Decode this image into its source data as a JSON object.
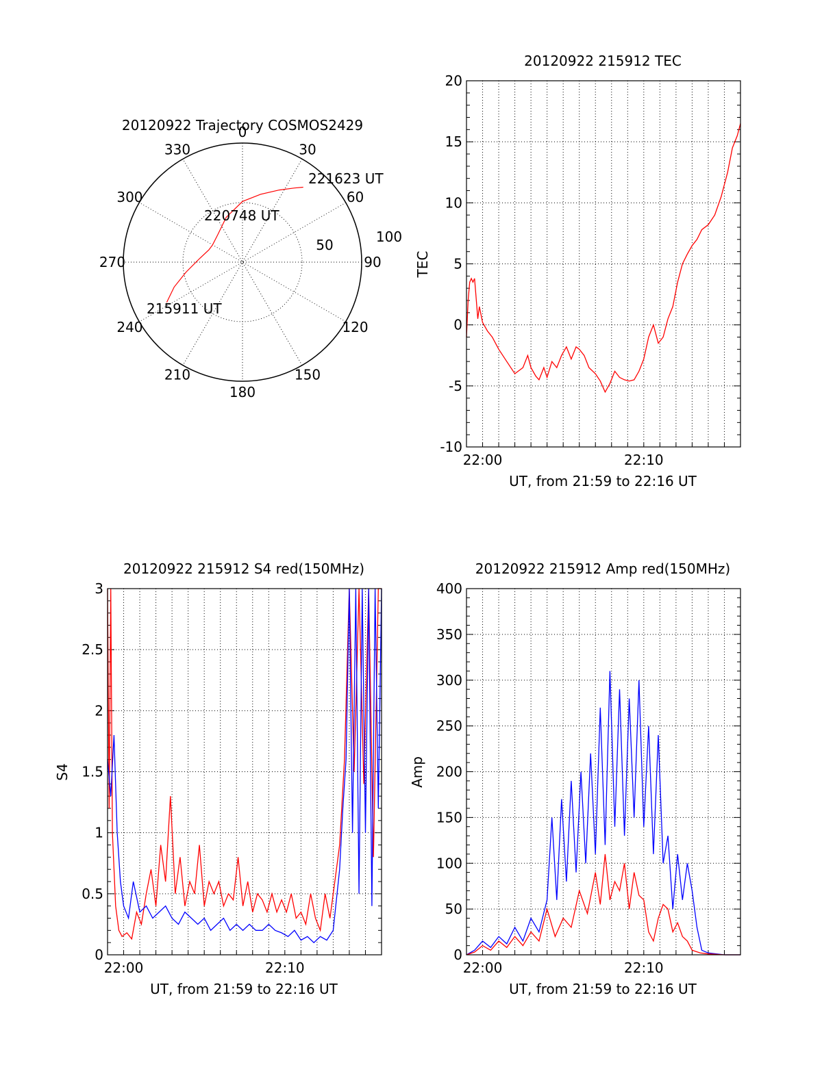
{
  "colors": {
    "red": "#ff0000",
    "blue": "#0000ff",
    "axis": "#000000"
  },
  "chart_data": [
    {
      "type": "polar",
      "title": "20120922 Trajectory COSMOS2429",
      "azimuth_labels": [
        "0",
        "30",
        "60",
        "90",
        "120",
        "150",
        "180",
        "210",
        "240",
        "270",
        "300",
        "330"
      ],
      "radial_labels": [
        "50",
        "100"
      ],
      "series": [
        {
          "color": "red",
          "points": [
            {
              "az": 242,
              "r": 72
            },
            {
              "az": 250,
              "r": 61
            },
            {
              "az": 260,
              "r": 48
            },
            {
              "az": 275,
              "r": 36
            },
            {
              "az": 290,
              "r": 30
            },
            {
              "az": 300,
              "r": 29
            },
            {
              "az": 318,
              "r": 31
            },
            {
              "az": 340,
              "r": 40
            },
            {
              "az": 0,
              "r": 51
            },
            {
              "az": 15,
              "r": 59
            },
            {
              "az": 27,
              "r": 68
            },
            {
              "az": 35,
              "r": 76
            },
            {
              "az": 39,
              "r": 81
            }
          ]
        }
      ],
      "annotations": [
        "221623 UT",
        "220748 UT",
        "215911 UT"
      ]
    },
    {
      "type": "line",
      "title": "20120922 215912 TEC",
      "xlabel": "UT, from 21:59 to 22:16 UT",
      "ylabel": "TEC",
      "x_unit": "minutes after 21:59",
      "xlim": [
        0,
        17
      ],
      "ylim": [
        -10,
        20
      ],
      "yticks": [
        "-10",
        "-5",
        "0",
        "5",
        "10",
        "15",
        "20"
      ],
      "xticks": [
        {
          "x": 1,
          "label": "22:00"
        },
        {
          "x": 11,
          "label": "22:10"
        }
      ],
      "grid": true,
      "series": [
        {
          "color": "red",
          "x": [
            0.0,
            0.1,
            0.2,
            0.3,
            0.4,
            0.5,
            0.6,
            0.7,
            0.8,
            1.0,
            1.3,
            1.6,
            2.0,
            2.5,
            3.0,
            3.5,
            3.8,
            4.0,
            4.3,
            4.5,
            4.8,
            5.0,
            5.3,
            5.6,
            5.9,
            6.2,
            6.5,
            6.8,
            7.0,
            7.3,
            7.6,
            8.0,
            8.3,
            8.6,
            8.9,
            9.2,
            9.5,
            9.8,
            10.1,
            10.4,
            10.7,
            11.0,
            11.3,
            11.6,
            11.9,
            12.2,
            12.5,
            12.8,
            13.1,
            13.4,
            13.7,
            14.0,
            14.3,
            14.6,
            15.0,
            15.4,
            15.8,
            16.2,
            16.5,
            16.8,
            17.0
          ],
          "y": [
            -1.0,
            2.0,
            3.5,
            3.8,
            3.5,
            3.8,
            2.2,
            0.5,
            1.5,
            0.2,
            -0.5,
            -1.0,
            -2.0,
            -3.0,
            -4.0,
            -3.5,
            -2.5,
            -3.5,
            -4.2,
            -4.5,
            -3.5,
            -4.3,
            -3.0,
            -3.5,
            -2.5,
            -1.8,
            -2.8,
            -1.8,
            -2.0,
            -2.5,
            -3.5,
            -4.0,
            -4.6,
            -5.5,
            -4.8,
            -3.8,
            -4.3,
            -4.5,
            -4.6,
            -4.5,
            -3.8,
            -2.8,
            -1.0,
            0.0,
            -1.5,
            -1.0,
            0.5,
            1.5,
            3.5,
            5.0,
            5.8,
            6.5,
            7.0,
            7.8,
            8.2,
            9.0,
            10.5,
            12.5,
            14.5,
            15.5,
            16.5
          ]
        }
      ]
    },
    {
      "type": "line",
      "title": "20120922 215912 S4 red(150MHz)",
      "xlabel": "UT, from 21:59 to 22:16 UT",
      "ylabel": "S4",
      "x_unit": "minutes after 21:59",
      "xlim": [
        0,
        17
      ],
      "ylim": [
        0,
        3
      ],
      "yticks": [
        "0",
        "0.5",
        "1",
        "1.5",
        "2",
        "2.5",
        "3"
      ],
      "xticks": [
        {
          "x": 1,
          "label": "22:00"
        },
        {
          "x": 11,
          "label": "22:10"
        }
      ],
      "grid": true,
      "series": [
        {
          "color": "red",
          "x": [
            0.0,
            0.1,
            0.2,
            0.3,
            0.5,
            0.7,
            0.9,
            1.2,
            1.5,
            1.8,
            2.1,
            2.4,
            2.7,
            3.0,
            3.3,
            3.6,
            3.9,
            4.2,
            4.5,
            4.8,
            5.1,
            5.4,
            5.7,
            6.0,
            6.3,
            6.6,
            6.9,
            7.2,
            7.5,
            7.8,
            8.1,
            8.4,
            8.7,
            9.0,
            9.3,
            9.6,
            9.9,
            10.2,
            10.5,
            10.8,
            11.1,
            11.4,
            11.7,
            12.0,
            12.3,
            12.6,
            12.9,
            13.2,
            13.5,
            13.8,
            14.1,
            14.4,
            14.7,
            15.0,
            15.3,
            15.6,
            15.9,
            16.2,
            16.5,
            16.8,
            17.0
          ],
          "y": [
            3.0,
            1.2,
            3.0,
            1.0,
            0.4,
            0.2,
            0.15,
            0.18,
            0.13,
            0.35,
            0.25,
            0.5,
            0.7,
            0.4,
            0.9,
            0.6,
            1.3,
            0.5,
            0.8,
            0.4,
            0.6,
            0.5,
            0.9,
            0.4,
            0.6,
            0.5,
            0.6,
            0.4,
            0.5,
            0.45,
            0.8,
            0.4,
            0.6,
            0.35,
            0.5,
            0.45,
            0.35,
            0.5,
            0.35,
            0.45,
            0.35,
            0.5,
            0.3,
            0.35,
            0.25,
            0.5,
            0.3,
            0.2,
            0.5,
            0.3,
            0.6,
            0.9,
            1.6,
            3.0,
            1.5,
            3.0,
            1.4,
            3.0,
            0.8,
            3.0,
            3.0
          ]
        },
        {
          "color": "blue",
          "x": [
            0.0,
            0.2,
            0.4,
            0.6,
            0.8,
            1.0,
            1.3,
            1.6,
            2.0,
            2.4,
            2.8,
            3.2,
            3.6,
            4.0,
            4.4,
            4.8,
            5.2,
            5.6,
            6.0,
            6.4,
            6.8,
            7.2,
            7.6,
            8.0,
            8.4,
            8.8,
            9.2,
            9.6,
            10.0,
            10.4,
            10.8,
            11.2,
            11.6,
            12.0,
            12.4,
            12.8,
            13.2,
            13.6,
            14.0,
            14.4,
            14.6,
            14.8,
            15.0,
            15.2,
            15.4,
            15.6,
            15.8,
            16.0,
            16.2,
            16.4,
            16.6,
            16.8,
            17.0
          ],
          "y": [
            1.6,
            1.3,
            1.8,
            1.0,
            0.6,
            0.4,
            0.3,
            0.6,
            0.35,
            0.4,
            0.3,
            0.35,
            0.4,
            0.3,
            0.25,
            0.35,
            0.3,
            0.25,
            0.3,
            0.2,
            0.25,
            0.3,
            0.2,
            0.25,
            0.2,
            0.25,
            0.2,
            0.2,
            0.25,
            0.2,
            0.18,
            0.15,
            0.2,
            0.12,
            0.15,
            0.1,
            0.15,
            0.12,
            0.2,
            0.7,
            1.2,
            1.6,
            3.0,
            1.0,
            3.0,
            0.5,
            3.0,
            1.0,
            3.0,
            0.4,
            3.0,
            1.2,
            3.0
          ]
        }
      ]
    },
    {
      "type": "line",
      "title": "20120922 215912 Amp red(150MHz)",
      "xlabel": "UT, from 21:59 to 22:16 UT",
      "ylabel": "Amp",
      "x_unit": "minutes after 21:59",
      "xlim": [
        0,
        17
      ],
      "ylim": [
        0,
        400
      ],
      "yticks": [
        "0",
        "50",
        "100",
        "150",
        "200",
        "250",
        "300",
        "350",
        "400"
      ],
      "xticks": [
        {
          "x": 1,
          "label": "22:00"
        },
        {
          "x": 11,
          "label": "22:10"
        }
      ],
      "grid": true,
      "series": [
        {
          "color": "blue",
          "x": [
            0.0,
            0.5,
            1.0,
            1.5,
            2.0,
            2.5,
            3.0,
            3.5,
            4.0,
            4.5,
            5.0,
            5.3,
            5.6,
            5.9,
            6.2,
            6.5,
            6.8,
            7.1,
            7.4,
            7.7,
            8.0,
            8.3,
            8.6,
            8.9,
            9.2,
            9.5,
            9.8,
            10.1,
            10.4,
            10.7,
            11.0,
            11.3,
            11.6,
            11.9,
            12.2,
            12.5,
            12.8,
            13.1,
            13.4,
            13.7,
            14.0,
            14.3,
            14.6,
            15.0,
            15.5,
            16.0,
            16.5,
            17.0
          ],
          "y": [
            0,
            5,
            15,
            8,
            20,
            12,
            30,
            15,
            40,
            25,
            60,
            150,
            60,
            170,
            80,
            190,
            90,
            200,
            100,
            220,
            110,
            270,
            120,
            310,
            140,
            290,
            130,
            280,
            150,
            300,
            140,
            250,
            110,
            240,
            100,
            130,
            50,
            110,
            60,
            100,
            70,
            30,
            5,
            2,
            1,
            0,
            0,
            0
          ]
        },
        {
          "color": "red",
          "x": [
            0.0,
            0.5,
            1.0,
            1.5,
            2.0,
            2.5,
            3.0,
            3.5,
            4.0,
            4.5,
            5.0,
            5.5,
            6.0,
            6.5,
            7.0,
            7.5,
            8.0,
            8.3,
            8.6,
            8.9,
            9.2,
            9.5,
            9.8,
            10.1,
            10.4,
            10.7,
            11.0,
            11.3,
            11.6,
            11.9,
            12.2,
            12.5,
            12.8,
            13.1,
            13.4,
            13.7,
            14.0,
            14.5,
            15.0,
            16.0,
            17.0
          ],
          "y": [
            0,
            3,
            10,
            5,
            15,
            8,
            20,
            10,
            25,
            15,
            50,
            20,
            40,
            30,
            70,
            45,
            90,
            55,
            110,
            60,
            80,
            70,
            100,
            50,
            90,
            65,
            60,
            25,
            15,
            40,
            55,
            50,
            25,
            35,
            20,
            15,
            5,
            2,
            1,
            0,
            0
          ]
        }
      ]
    }
  ]
}
